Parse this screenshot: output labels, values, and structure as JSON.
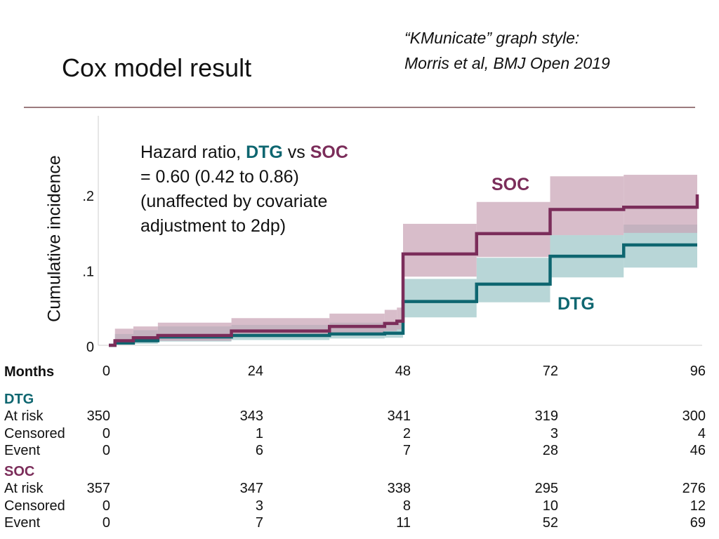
{
  "slide": {
    "title": "Cox model result",
    "credit_line1": "“KMunicate” graph style:",
    "credit_line2": "Morris et al, BMJ Open 2019"
  },
  "annotation": {
    "prefix": "Hazard ratio, ",
    "dtg": "DTG",
    "vs": " vs ",
    "soc": "SOC",
    "line2": "= 0.60 (0.42 to 0.86)",
    "line3": "(unaffected by covariate",
    "line4": "adjustment to 2dp)"
  },
  "colors": {
    "dtg": "#0e6670",
    "soc": "#7b2d5a",
    "dtg_band": "#9cc6c8",
    "soc_band": "#c9a3b6",
    "axis": "#cccccc"
  },
  "chart_data": {
    "type": "line",
    "subtype": "step",
    "xlabel": "",
    "ylabel": "Cumulative incidence",
    "xlim": [
      0,
      96
    ],
    "ylim": [
      0,
      0.2
    ],
    "x_ticks": [
      "0",
      "24",
      "48",
      "72",
      "96"
    ],
    "x_tick_values": [
      0,
      24,
      48,
      72,
      96
    ],
    "y_ticks": [
      "0",
      ".1",
      ".2"
    ],
    "y_tick_values": [
      0,
      0.1,
      0.2
    ],
    "grid": false,
    "legend": "direct labels",
    "series": [
      {
        "name": "DTG",
        "x": [
          0,
          1,
          4,
          8,
          20,
          36,
          45,
          48,
          60,
          72,
          84,
          96
        ],
        "y": [
          0,
          0.003,
          0.006,
          0.011,
          0.013,
          0.015,
          0.016,
          0.058,
          0.081,
          0.118,
          0.133,
          0.133
        ],
        "ci_low": [
          0,
          0.001,
          0.002,
          0.005,
          0.007,
          0.009,
          0.01,
          0.037,
          0.057,
          0.09,
          0.103,
          0.103
        ],
        "ci_high": [
          0,
          0.015,
          0.02,
          0.025,
          0.027,
          0.03,
          0.031,
          0.088,
          0.116,
          0.146,
          0.16,
          0.16
        ]
      },
      {
        "name": "SOC",
        "x": [
          0,
          1,
          4,
          8,
          20,
          36,
          45,
          47,
          48,
          60,
          72,
          84,
          96
        ],
        "y": [
          0,
          0.006,
          0.01,
          0.013,
          0.019,
          0.025,
          0.029,
          0.032,
          0.121,
          0.148,
          0.18,
          0.183,
          0.2
        ],
        "ci_low": [
          0,
          0.002,
          0.004,
          0.006,
          0.011,
          0.016,
          0.019,
          0.021,
          0.091,
          0.117,
          0.146,
          0.149,
          0.164
        ],
        "ci_high": [
          0,
          0.022,
          0.025,
          0.03,
          0.036,
          0.042,
          0.047,
          0.05,
          0.161,
          0.19,
          0.224,
          0.226,
          0.244
        ]
      }
    ]
  },
  "risk_table": {
    "header": "Months",
    "columns": [
      "0",
      "24",
      "48",
      "72",
      "96"
    ],
    "groups": [
      {
        "name": "DTG",
        "rows": [
          {
            "label": "At risk",
            "values": [
              "350",
              "343",
              "341",
              "319",
              "300"
            ]
          },
          {
            "label": "Censored",
            "values": [
              "0",
              "1",
              "2",
              "3",
              "4"
            ]
          },
          {
            "label": "Event",
            "values": [
              "0",
              "6",
              "7",
              "28",
              "46"
            ]
          }
        ]
      },
      {
        "name": "SOC",
        "rows": [
          {
            "label": "At risk",
            "values": [
              "357",
              "347",
              "338",
              "295",
              "276"
            ]
          },
          {
            "label": "Censored",
            "values": [
              "0",
              "3",
              "8",
              "10",
              "12"
            ]
          },
          {
            "label": "Event",
            "values": [
              "0",
              "7",
              "11",
              "52",
              "69"
            ]
          }
        ]
      }
    ]
  }
}
